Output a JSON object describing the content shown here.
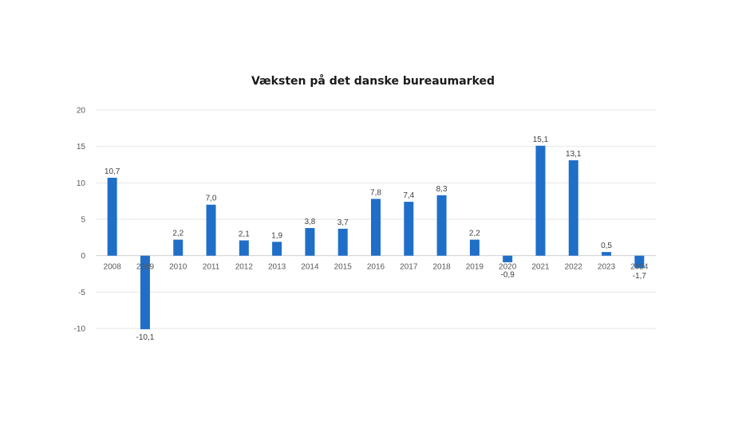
{
  "chart_data": {
    "type": "bar",
    "title": "Væksten på det danske bureaumarked",
    "xlabel": "",
    "ylabel": "",
    "categories": [
      "2008",
      "2009",
      "2010",
      "2011",
      "2012",
      "2013",
      "2014",
      "2015",
      "2016",
      "2017",
      "2018",
      "2019",
      "2020",
      "2021",
      "2022",
      "2023",
      "2024"
    ],
    "values": [
      10.7,
      -10.1,
      2.2,
      7.0,
      2.1,
      1.9,
      3.8,
      3.7,
      7.8,
      7.4,
      8.3,
      2.2,
      -0.9,
      15.1,
      13.1,
      0.5,
      -1.7
    ],
    "data_labels": [
      "10,7",
      "-10,1",
      "2,2",
      "7,0",
      "2,1",
      "1,9",
      "3,8",
      "3,7",
      "7,8",
      "7,4",
      "8,3",
      "2,2",
      "-0,9",
      "15,1",
      "13,1",
      "0,5",
      "-1,7"
    ],
    "ylim": [
      -10,
      20
    ],
    "yticks": [
      20,
      15,
      10,
      5,
      0,
      -5,
      -10
    ],
    "ytick_labels": [
      "20",
      "15",
      "10",
      "5",
      "0",
      "-5",
      "-10"
    ],
    "grid": true,
    "legend": "none",
    "bar_color": "#1f6fc8"
  }
}
